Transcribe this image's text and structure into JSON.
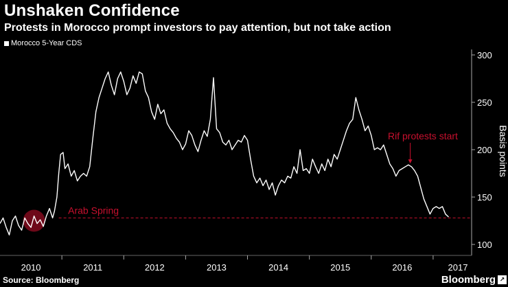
{
  "header": {
    "title": "Unshaken Confidence",
    "subtitle": "Protests in Morocco prompt investors to pay attention, but not take action"
  },
  "legend": {
    "label": "Morocco 5-Year CDS"
  },
  "footer": {
    "source": "Source: Bloomberg",
    "brand": "Bloomberg"
  },
  "colors": {
    "background": "#000000",
    "line": "#ffffff",
    "annotation": "#c8102e"
  },
  "chart_data": {
    "type": "line",
    "xlabel": "",
    "ylabel": "Basis points",
    "ylim": [
      100,
      300
    ],
    "xlim": [
      2010.0,
      2017.6
    ],
    "yticks": [
      100,
      150,
      200,
      250,
      300
    ],
    "xticks": [
      "2010",
      "2011",
      "2012",
      "2013",
      "2014",
      "2015",
      "2016",
      "2017"
    ],
    "grid": false,
    "legend_position": "top-left",
    "series": [
      {
        "name": "Morocco 5-Year CDS",
        "points": [
          [
            2010.0,
            122
          ],
          [
            2010.05,
            128
          ],
          [
            2010.1,
            118
          ],
          [
            2010.15,
            110
          ],
          [
            2010.2,
            125
          ],
          [
            2010.25,
            130
          ],
          [
            2010.3,
            120
          ],
          [
            2010.35,
            115
          ],
          [
            2010.4,
            128
          ],
          [
            2010.45,
            122
          ],
          [
            2010.5,
            118
          ],
          [
            2010.55,
            130
          ],
          [
            2010.6,
            122
          ],
          [
            2010.65,
            126
          ],
          [
            2010.7,
            119
          ],
          [
            2010.75,
            130
          ],
          [
            2010.8,
            138
          ],
          [
            2010.85,
            128
          ],
          [
            2010.88,
            135
          ],
          [
            2010.92,
            150
          ],
          [
            2010.95,
            175
          ],
          [
            2010.98,
            195
          ],
          [
            2011.02,
            197
          ],
          [
            2011.05,
            180
          ],
          [
            2011.1,
            185
          ],
          [
            2011.15,
            172
          ],
          [
            2011.2,
            178
          ],
          [
            2011.25,
            167
          ],
          [
            2011.3,
            172
          ],
          [
            2011.35,
            175
          ],
          [
            2011.4,
            172
          ],
          [
            2011.45,
            182
          ],
          [
            2011.5,
            212
          ],
          [
            2011.55,
            240
          ],
          [
            2011.6,
            255
          ],
          [
            2011.65,
            265
          ],
          [
            2011.7,
            275
          ],
          [
            2011.75,
            282
          ],
          [
            2011.8,
            268
          ],
          [
            2011.85,
            258
          ],
          [
            2011.9,
            275
          ],
          [
            2011.95,
            282
          ],
          [
            2012.0,
            272
          ],
          [
            2012.05,
            258
          ],
          [
            2012.1,
            265
          ],
          [
            2012.15,
            278
          ],
          [
            2012.2,
            270
          ],
          [
            2012.25,
            282
          ],
          [
            2012.3,
            280
          ],
          [
            2012.35,
            262
          ],
          [
            2012.4,
            255
          ],
          [
            2012.45,
            240
          ],
          [
            2012.5,
            232
          ],
          [
            2012.55,
            248
          ],
          [
            2012.6,
            238
          ],
          [
            2012.65,
            242
          ],
          [
            2012.7,
            228
          ],
          [
            2012.75,
            222
          ],
          [
            2012.8,
            218
          ],
          [
            2012.85,
            212
          ],
          [
            2012.9,
            208
          ],
          [
            2012.95,
            200
          ],
          [
            2013.0,
            206
          ],
          [
            2013.05,
            220
          ],
          [
            2013.1,
            215
          ],
          [
            2013.15,
            205
          ],
          [
            2013.2,
            198
          ],
          [
            2013.25,
            210
          ],
          [
            2013.3,
            220
          ],
          [
            2013.35,
            214
          ],
          [
            2013.4,
            232
          ],
          [
            2013.45,
            276
          ],
          [
            2013.5,
            222
          ],
          [
            2013.55,
            218
          ],
          [
            2013.6,
            208
          ],
          [
            2013.65,
            205
          ],
          [
            2013.7,
            210
          ],
          [
            2013.75,
            200
          ],
          [
            2013.8,
            205
          ],
          [
            2013.85,
            210
          ],
          [
            2013.9,
            208
          ],
          [
            2013.95,
            215
          ],
          [
            2014.0,
            210
          ],
          [
            2014.05,
            190
          ],
          [
            2014.1,
            172
          ],
          [
            2014.15,
            165
          ],
          [
            2014.2,
            170
          ],
          [
            2014.25,
            162
          ],
          [
            2014.3,
            168
          ],
          [
            2014.35,
            158
          ],
          [
            2014.4,
            165
          ],
          [
            2014.45,
            152
          ],
          [
            2014.5,
            162
          ],
          [
            2014.55,
            168
          ],
          [
            2014.6,
            165
          ],
          [
            2014.65,
            172
          ],
          [
            2014.7,
            170
          ],
          [
            2014.75,
            182
          ],
          [
            2014.8,
            175
          ],
          [
            2014.85,
            200
          ],
          [
            2014.9,
            178
          ],
          [
            2014.95,
            180
          ],
          [
            2015.0,
            175
          ],
          [
            2015.05,
            190
          ],
          [
            2015.1,
            182
          ],
          [
            2015.15,
            175
          ],
          [
            2015.2,
            185
          ],
          [
            2015.25,
            178
          ],
          [
            2015.3,
            190
          ],
          [
            2015.35,
            182
          ],
          [
            2015.4,
            195
          ],
          [
            2015.45,
            190
          ],
          [
            2015.5,
            200
          ],
          [
            2015.55,
            210
          ],
          [
            2015.6,
            220
          ],
          [
            2015.65,
            228
          ],
          [
            2015.7,
            232
          ],
          [
            2015.75,
            255
          ],
          [
            2015.8,
            242
          ],
          [
            2015.85,
            232
          ],
          [
            2015.9,
            220
          ],
          [
            2015.95,
            225
          ],
          [
            2016.0,
            215
          ],
          [
            2016.05,
            200
          ],
          [
            2016.1,
            202
          ],
          [
            2016.15,
            200
          ],
          [
            2016.2,
            205
          ],
          [
            2016.25,
            195
          ],
          [
            2016.3,
            185
          ],
          [
            2016.35,
            180
          ],
          [
            2016.4,
            172
          ],
          [
            2016.45,
            178
          ],
          [
            2016.5,
            180
          ],
          [
            2016.55,
            182
          ],
          [
            2016.6,
            184
          ],
          [
            2016.65,
            182
          ],
          [
            2016.7,
            178
          ],
          [
            2016.75,
            172
          ],
          [
            2016.8,
            160
          ],
          [
            2016.85,
            148
          ],
          [
            2016.9,
            140
          ],
          [
            2016.95,
            132
          ],
          [
            2017.0,
            138
          ],
          [
            2017.05,
            140
          ],
          [
            2017.1,
            138
          ],
          [
            2017.15,
            140
          ],
          [
            2017.2,
            132
          ],
          [
            2017.25,
            129
          ]
        ]
      }
    ],
    "annotations": [
      {
        "text": "Arab Spring",
        "x": 2010.95,
        "y": 128
      },
      {
        "text": "Rif protests start",
        "x": 2016.63,
        "y": 184
      }
    ],
    "reference_line": {
      "y": 128,
      "style": "dashed"
    }
  }
}
